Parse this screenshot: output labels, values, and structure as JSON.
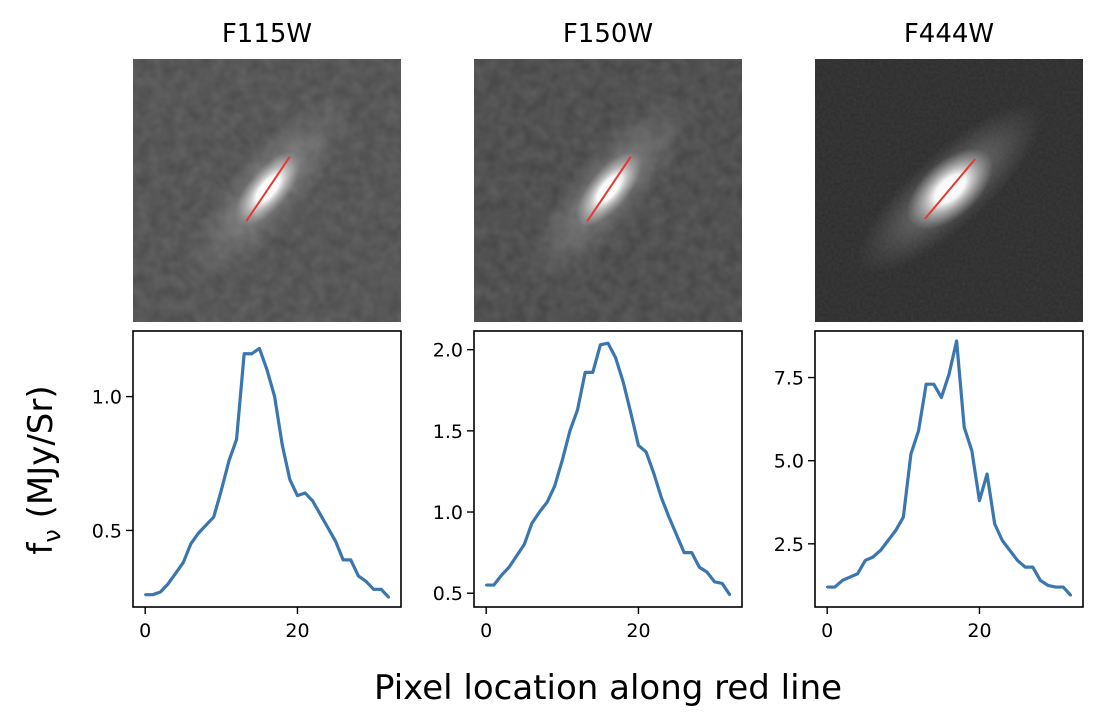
{
  "figure": {
    "xlabel": "Pixel location along red line",
    "ylabel": "f",
    "ylabel_sub": "ν",
    "ylabel_unit": " (MJy/Sr)"
  },
  "colors": {
    "line": "#3a76af",
    "redline": "#e8382e",
    "image_bg_1": "#4a4a4a",
    "image_bg_3": "#2c2c2c"
  },
  "chart_data": [
    {
      "type": "line",
      "title": "F115W",
      "x": [
        0,
        1,
        2,
        3,
        4,
        5,
        6,
        7,
        8,
        9,
        10,
        11,
        12,
        13,
        14,
        15,
        16,
        17,
        18,
        19,
        20,
        21,
        22,
        23,
        24,
        25,
        26,
        27,
        28,
        29,
        30,
        31,
        32
      ],
      "values": [
        0.26,
        0.26,
        0.27,
        0.3,
        0.34,
        0.38,
        0.45,
        0.49,
        0.52,
        0.55,
        0.65,
        0.76,
        0.84,
        1.16,
        1.16,
        1.18,
        1.1,
        1.0,
        0.82,
        0.69,
        0.63,
        0.64,
        0.61,
        0.56,
        0.51,
        0.46,
        0.39,
        0.39,
        0.33,
        0.31,
        0.28,
        0.28,
        0.25
      ],
      "xlim": [
        -1.6,
        33.6
      ],
      "ylim": [
        0.214,
        1.245
      ],
      "xticks": [
        0,
        20
      ],
      "yticks": [
        0.5,
        1.0
      ],
      "ytick_labels": [
        "0.5",
        "1.0"
      ],
      "xtick_labels": [
        "0",
        "20"
      ],
      "redline_angle_deg": 56
    },
    {
      "type": "line",
      "title": "F150W",
      "x": [
        0,
        1,
        2,
        3,
        4,
        5,
        6,
        7,
        8,
        9,
        10,
        11,
        12,
        13,
        14,
        15,
        16,
        17,
        18,
        19,
        20,
        21,
        22,
        23,
        24,
        25,
        26,
        27,
        28,
        29,
        30,
        31,
        32
      ],
      "values": [
        0.55,
        0.55,
        0.61,
        0.66,
        0.73,
        0.8,
        0.93,
        1.0,
        1.06,
        1.16,
        1.32,
        1.5,
        1.63,
        1.86,
        1.86,
        2.03,
        2.04,
        1.95,
        1.8,
        1.61,
        1.41,
        1.37,
        1.24,
        1.09,
        0.97,
        0.86,
        0.75,
        0.75,
        0.66,
        0.63,
        0.57,
        0.56,
        0.49
      ],
      "xlim": [
        -1.6,
        33.6
      ],
      "ylim": [
        0.415,
        2.115
      ],
      "xticks": [
        0,
        20
      ],
      "yticks": [
        0.5,
        1.0,
        1.5,
        2.0
      ],
      "ytick_labels": [
        "0.5",
        "1.0",
        "1.5",
        "2.0"
      ],
      "xtick_labels": [
        "0",
        "20"
      ],
      "redline_angle_deg": 56
    },
    {
      "type": "line",
      "title": "F444W",
      "x": [
        0,
        1,
        2,
        3,
        4,
        5,
        6,
        7,
        8,
        9,
        10,
        11,
        12,
        13,
        14,
        15,
        16,
        17,
        18,
        19,
        20,
        21,
        22,
        23,
        24,
        25,
        26,
        27,
        28,
        29,
        30,
        31,
        32
      ],
      "values": [
        1.2,
        1.2,
        1.4,
        1.5,
        1.6,
        2.0,
        2.1,
        2.3,
        2.6,
        2.9,
        3.3,
        5.2,
        5.9,
        7.3,
        7.3,
        6.9,
        7.6,
        8.6,
        6.0,
        5.3,
        3.8,
        4.6,
        3.1,
        2.6,
        2.3,
        2.0,
        1.8,
        1.8,
        1.4,
        1.25,
        1.2,
        1.2,
        0.95
      ],
      "xlim": [
        -1.6,
        33.6
      ],
      "ylim": [
        0.6,
        8.9
      ],
      "xticks": [
        0,
        20
      ],
      "yticks": [
        2.5,
        5.0,
        7.5
      ],
      "ytick_labels": [
        "2.5",
        "5.0",
        "7.5"
      ],
      "xtick_labels": [
        "0",
        "20"
      ],
      "redline_angle_deg": 50
    }
  ]
}
